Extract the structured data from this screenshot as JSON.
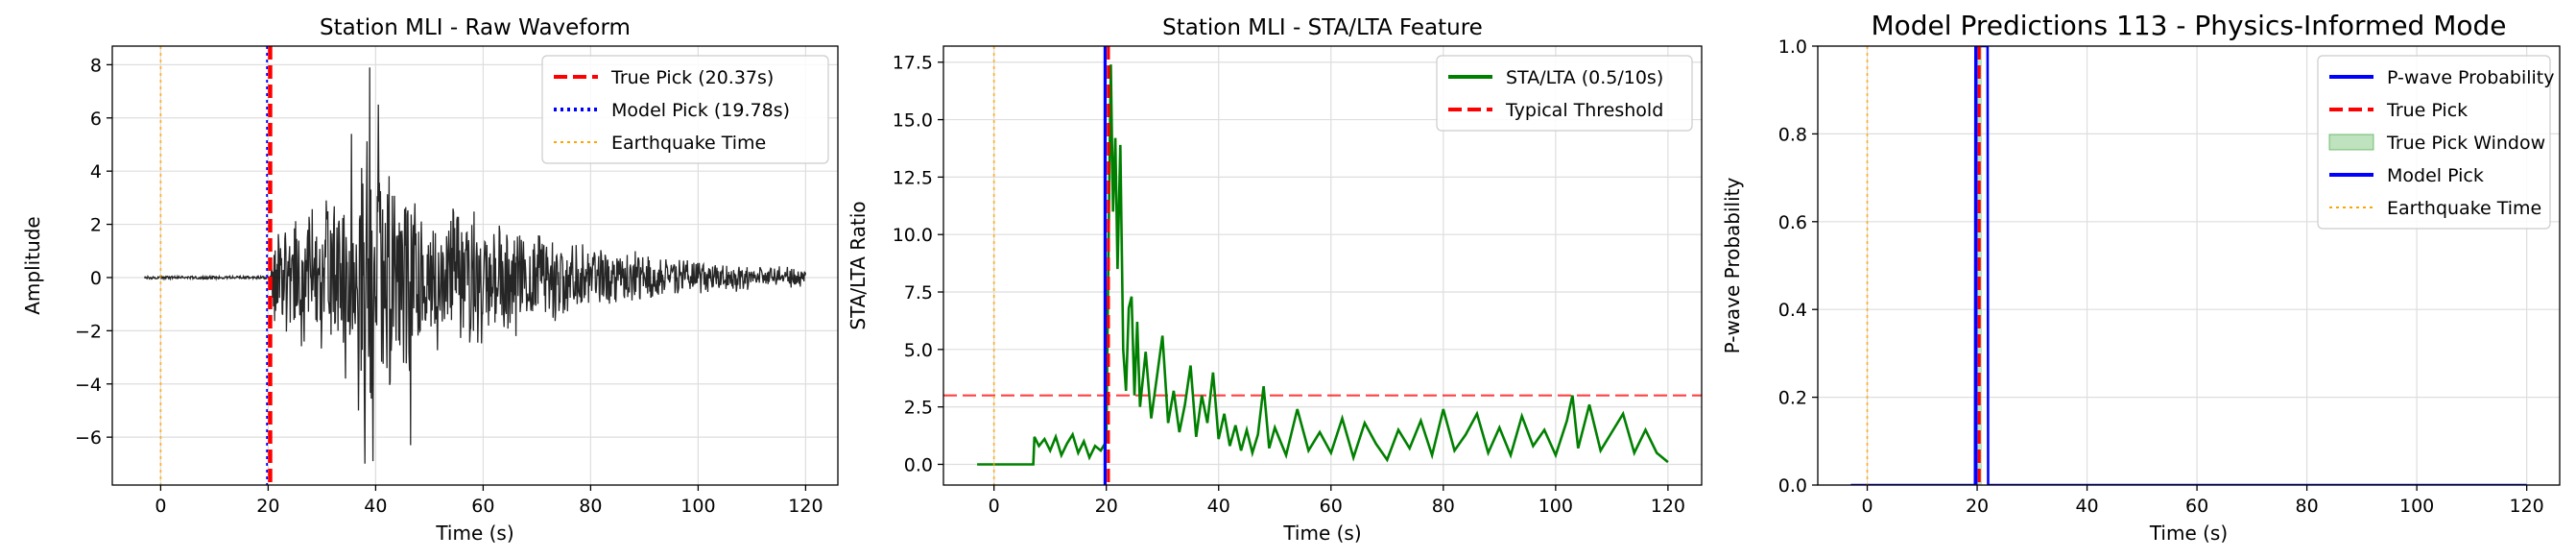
{
  "chart_data": [
    {
      "type": "line",
      "title": "Station MLI - Raw Waveform",
      "xlabel": "Time (s)",
      "ylabel": "Amplitude",
      "xlim": [
        -9,
        126
      ],
      "ylim": [
        -7.8,
        8.7
      ],
      "xticks": [
        0,
        20,
        40,
        60,
        80,
        100,
        120
      ],
      "xtick_labels": [
        "0",
        "20",
        "40",
        "60",
        "80",
        "100",
        "120"
      ],
      "yticks": [
        -6,
        -4,
        -2,
        0,
        2,
        4,
        6,
        8
      ],
      "ytick_labels": [
        "−6",
        "−4",
        "−2",
        "0",
        "2",
        "4",
        "6",
        "8"
      ],
      "grid": true,
      "legend_position": "top-right",
      "series": [
        {
          "name": "",
          "color": "#000000",
          "noise_before_pick": 0.05,
          "envelope": [
            [
              -3,
              0.05
            ],
            [
              20.37,
              0.05
            ],
            [
              21,
              2.0
            ],
            [
              27,
              3.0
            ],
            [
              33,
              3.5
            ],
            [
              37,
              5.0
            ],
            [
              38.5,
              7.0
            ],
            [
              42,
              4.5
            ],
            [
              50,
              3.2
            ],
            [
              60,
              2.6
            ],
            [
              70,
              2.0
            ],
            [
              80,
              1.4
            ],
            [
              90,
              1.0
            ],
            [
              100,
              0.7
            ],
            [
              110,
              0.5
            ],
            [
              120,
              0.4
            ]
          ],
          "peaks": [
            [
              38.9,
              7.9
            ],
            [
              38.0,
              -7.0
            ],
            [
              39.5,
              -6.9
            ],
            [
              46.5,
              -6.3
            ],
            [
              35.5,
              5.4
            ],
            [
              40.5,
              6.5
            ],
            [
              36.8,
              -5.0
            ]
          ]
        }
      ],
      "vlines": [
        {
          "name": "True Pick (20.37s)",
          "x": 20.37,
          "color": "#ff0000",
          "style": "dashed"
        },
        {
          "name": "Model Pick (19.78s)",
          "x": 19.78,
          "color": "#0000ff",
          "style": "dotted"
        },
        {
          "name": "Earthquake Time",
          "x": 0,
          "color": "#ffa500",
          "style": "dotted"
        }
      ],
      "legend": [
        {
          "label": "True Pick (20.37s)",
          "color": "#ff0000",
          "style": "dashed"
        },
        {
          "label": "Model Pick (19.78s)",
          "color": "#0000ff",
          "style": "dotted"
        },
        {
          "label": "Earthquake Time",
          "color": "#ffa500",
          "style": "dotted"
        }
      ]
    },
    {
      "type": "line",
      "title": "Station MLI - STA/LTA Feature",
      "xlabel": "Time (s)",
      "ylabel": "STA/LTA Ratio",
      "xlim": [
        -9,
        126
      ],
      "ylim": [
        -0.9,
        18.2
      ],
      "xticks": [
        0,
        20,
        40,
        60,
        80,
        100,
        120
      ],
      "xtick_labels": [
        "0",
        "20",
        "40",
        "60",
        "80",
        "100",
        "120"
      ],
      "yticks": [
        0.0,
        2.5,
        5.0,
        7.5,
        10.0,
        12.5,
        15.0,
        17.5
      ],
      "ytick_labels": [
        "0.0",
        "2.5",
        "5.0",
        "7.5",
        "10.0",
        "12.5",
        "15.0",
        "17.5"
      ],
      "grid": true,
      "legend_position": "top-right",
      "series": [
        {
          "name": "STA/LTA (0.5/10s)",
          "color": "#008000",
          "x": [
            -3,
            7,
            7.2,
            8,
            9,
            10,
            11,
            12,
            13,
            14,
            15,
            16,
            17,
            18,
            19,
            20,
            20.4,
            20.8,
            21.2,
            21.6,
            22,
            22.5,
            23,
            23.5,
            24,
            24.5,
            25,
            25.5,
            26,
            27,
            28,
            29,
            30,
            31,
            32,
            33,
            34,
            35,
            36,
            37,
            38,
            39,
            40,
            41,
            42,
            43,
            44,
            45,
            46,
            47,
            48,
            49,
            50,
            52,
            54,
            56,
            58,
            60,
            62,
            64,
            66,
            68,
            70,
            72,
            74,
            76,
            78,
            80,
            82,
            84,
            86,
            88,
            90,
            92,
            94,
            96,
            98,
            100,
            102,
            103,
            104,
            106,
            108,
            110,
            112,
            114,
            116,
            118,
            120
          ],
          "values": [
            0,
            0,
            1.2,
            0.8,
            1.1,
            0.6,
            1.2,
            0.4,
            0.9,
            1.3,
            0.5,
            1.0,
            0.3,
            0.8,
            0.6,
            1.0,
            9.5,
            17.4,
            11.0,
            14.2,
            8.5,
            13.9,
            5.0,
            3.2,
            6.8,
            7.3,
            3.0,
            6.2,
            2.5,
            4.9,
            2.0,
            3.8,
            5.6,
            1.8,
            3.2,
            1.4,
            2.6,
            4.3,
            1.2,
            3.0,
            1.8,
            4.0,
            1.1,
            2.2,
            0.8,
            1.7,
            0.6,
            1.5,
            0.5,
            1.3,
            3.4,
            0.7,
            1.6,
            0.4,
            2.4,
            0.6,
            1.4,
            0.5,
            2.0,
            0.3,
            1.8,
            0.9,
            0.2,
            1.5,
            0.7,
            1.9,
            0.4,
            2.4,
            0.6,
            1.3,
            2.2,
            0.5,
            1.6,
            0.4,
            2.1,
            0.8,
            1.5,
            0.4,
            1.9,
            3.0,
            0.7,
            2.6,
            0.6,
            1.4,
            2.2,
            0.5,
            1.5,
            0.5,
            0.1
          ]
        }
      ],
      "hlines": [
        {
          "name": "Typical Threshold",
          "y": 3.0,
          "color": "#ff0000",
          "style": "dashed"
        }
      ],
      "vlines": [
        {
          "name": "",
          "x": 20.37,
          "color": "#ff0000",
          "style": "dashed"
        },
        {
          "name": "",
          "x": 19.78,
          "color": "#0000ff",
          "style": "solid"
        },
        {
          "name": "",
          "x": 0,
          "color": "#ffa500",
          "style": "dotted"
        }
      ],
      "legend": [
        {
          "label": "STA/LTA (0.5/10s)",
          "color": "#008000",
          "style": "solid"
        },
        {
          "label": "Typical Threshold",
          "color": "#ff0000",
          "style": "dashed"
        }
      ]
    },
    {
      "type": "line",
      "title": "Model Predictions 113 - Physics-Informed Mode",
      "xlabel": "Time (s)",
      "ylabel": "P-wave Probability",
      "xlim": [
        -9,
        126
      ],
      "ylim": [
        0.0,
        1.0
      ],
      "xticks": [
        0,
        20,
        40,
        60,
        80,
        100,
        120
      ],
      "xtick_labels": [
        "0",
        "20",
        "40",
        "60",
        "80",
        "100",
        "120"
      ],
      "yticks": [
        0.0,
        0.2,
        0.4,
        0.6,
        0.8,
        1.0
      ],
      "ytick_labels": [
        "0.0",
        "0.2",
        "0.4",
        "0.6",
        "0.8",
        "1.0"
      ],
      "grid": true,
      "legend_position": "top-right",
      "series": [
        {
          "name": "P-wave Probability",
          "color": "#0000ff",
          "x": [
            -3,
            19.6,
            19.7,
            21.9,
            22.0,
            120
          ],
          "values": [
            0,
            0,
            1,
            1,
            0,
            0
          ]
        }
      ],
      "spans": [
        {
          "name": "True Pick Window",
          "x0": 19.87,
          "x1": 20.87,
          "color": "#2ca02c"
        }
      ],
      "vlines": [
        {
          "name": "True Pick",
          "x": 20.37,
          "color": "#ff0000",
          "style": "dashed"
        },
        {
          "name": "Model Pick",
          "x": 19.78,
          "color": "#0000ff",
          "style": "solid"
        },
        {
          "name": "Earthquake Time",
          "x": 0,
          "color": "#ffa500",
          "style": "dotted"
        }
      ],
      "legend": [
        {
          "label": "P-wave Probability",
          "color": "#0000ff",
          "style": "solid"
        },
        {
          "label": "True Pick",
          "color": "#ff0000",
          "style": "dashed"
        },
        {
          "label": "True Pick Window",
          "color": "#2ca02c",
          "style": "patch"
        },
        {
          "label": "Model Pick",
          "color": "#0000ff",
          "style": "solid"
        },
        {
          "label": "Earthquake Time",
          "color": "#ffa500",
          "style": "dotted"
        }
      ]
    }
  ]
}
